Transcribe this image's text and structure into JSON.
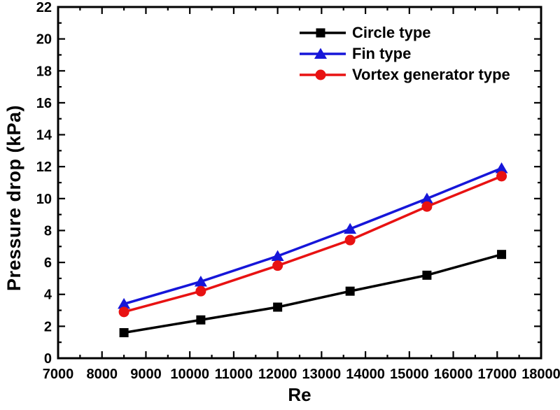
{
  "figure": {
    "background": "#ffffff",
    "axis_color": "#000000"
  },
  "chart_data": {
    "type": "line",
    "title": "",
    "xlabel": "Re",
    "ylabel": "Pressure drop (kPa)",
    "xlim": [
      7000,
      18000
    ],
    "ylim": [
      0,
      22
    ],
    "x_major_ticks": [
      7000,
      8000,
      9000,
      10000,
      11000,
      12000,
      13000,
      14000,
      15000,
      16000,
      17000,
      18000
    ],
    "x_minor_step": 500,
    "y_major_ticks": [
      0,
      2,
      4,
      6,
      8,
      10,
      12,
      14,
      16,
      18,
      20,
      22
    ],
    "y_minor_step": 1,
    "grid": "off",
    "legend_position": "top-right-inside",
    "x": [
      8500,
      10250,
      12000,
      13650,
      15400,
      17100
    ],
    "series": [
      {
        "name": "Circle type",
        "color": "#000000",
        "marker": "square",
        "values": [
          1.6,
          2.4,
          3.2,
          4.2,
          5.2,
          6.5
        ]
      },
      {
        "name": "Fin type",
        "color": "#1616d9",
        "marker": "triangle",
        "values": [
          3.4,
          4.8,
          6.4,
          8.1,
          10.0,
          11.9
        ]
      },
      {
        "name": "Vortex generator type",
        "color": "#e81212",
        "marker": "circle",
        "values": [
          2.9,
          4.2,
          5.8,
          7.4,
          9.5,
          11.4
        ]
      }
    ]
  }
}
